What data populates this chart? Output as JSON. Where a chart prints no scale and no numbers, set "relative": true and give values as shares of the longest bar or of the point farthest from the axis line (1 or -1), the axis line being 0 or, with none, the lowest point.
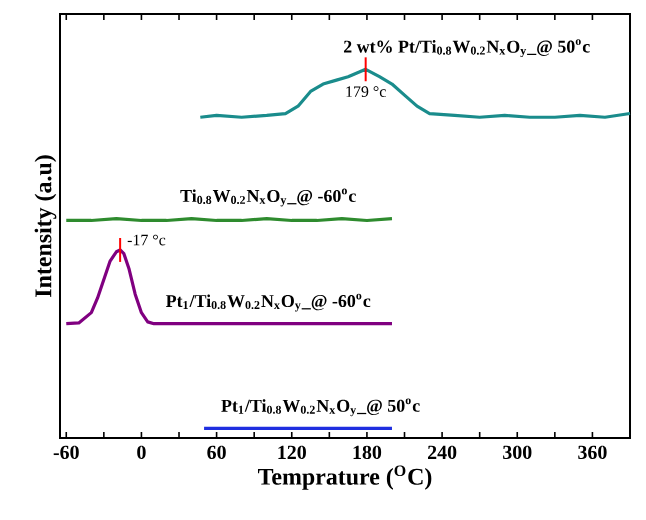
{
  "chart_data": {
    "type": "line",
    "relative": true,
    "xlabel": "Temprature ($^{O}$C)",
    "ylabel": "Intensity (a.u)",
    "xlim": [
      -65,
      390
    ],
    "xticks": [
      -60,
      {
        "value": -30,
        "label": null
      },
      0,
      {
        "value": 30,
        "label": null
      },
      60,
      {
        "value": 90,
        "label": null
      },
      120,
      {
        "value": 150,
        "label": null
      },
      180,
      {
        "value": 210,
        "label": null
      },
      240,
      {
        "value": 270,
        "label": null
      },
      300,
      {
        "value": 330,
        "label": null
      },
      360
    ],
    "legend": false,
    "marker": "none",
    "line_style": "solid",
    "series": [
      {
        "name": "2 wt% Pt/Ti$_{0.8}$W$_{0.2}$N$_{x}$O$_{y}$_@ 50$^{o}$c",
        "color": "#1a8c8c",
        "x": [
          47,
          60,
          80,
          100,
          115,
          125,
          135,
          145,
          155,
          165,
          179,
          190,
          200,
          210,
          220,
          230,
          250,
          270,
          290,
          310,
          330,
          350,
          370,
          390
        ],
        "values": [
          0.87,
          0.875,
          0.87,
          0.875,
          0.88,
          0.9,
          0.94,
          0.96,
          0.97,
          0.98,
          1.0,
          0.98,
          0.96,
          0.93,
          0.9,
          0.88,
          0.875,
          0.87,
          0.875,
          0.87,
          0.87,
          0.875,
          0.87,
          0.88
        ]
      },
      {
        "name": "Ti$_{0.8}$W$_{0.2}$N$_{x}$O$_{y}$_@ -60$^{o}$c",
        "color": "#2e8b2e",
        "x": [
          -60,
          -40,
          -20,
          0,
          20,
          40,
          60,
          80,
          100,
          120,
          140,
          160,
          180,
          200
        ],
        "values": [
          0.59,
          0.59,
          0.595,
          0.59,
          0.59,
          0.595,
          0.59,
          0.59,
          0.595,
          0.59,
          0.59,
          0.595,
          0.59,
          0.595
        ]
      },
      {
        "name": "Pt$_{1}$/Ti$_{0.8}$W$_{0.2}$N$_{x}$O$_{y}$_@ -60$^{o}$c",
        "color": "#800080",
        "x": [
          -60,
          -50,
          -40,
          -35,
          -30,
          -25,
          -20,
          -17,
          -14,
          -10,
          -5,
          0,
          5,
          10,
          40,
          80,
          120,
          160,
          200
        ],
        "values": [
          0.31,
          0.312,
          0.34,
          0.38,
          0.43,
          0.48,
          0.505,
          0.51,
          0.5,
          0.46,
          0.39,
          0.34,
          0.315,
          0.31,
          0.31,
          0.31,
          0.31,
          0.31,
          0.31
        ]
      },
      {
        "name": "Pt$_{1}$/Ti$_{0.8}$W$_{0.2}$N$_{x}$O$_{y}$_@ 50$^{o}$c",
        "color": "#1f2fe0",
        "x": [
          50,
          75,
          100,
          125,
          150,
          175,
          200
        ],
        "values": [
          0.026,
          0.026,
          0.026,
          0.026,
          0.026,
          0.026,
          0.026
        ]
      }
    ],
    "annotations": [
      {
        "text": "179 °c",
        "x": 179,
        "y": 1.0
      },
      {
        "text": "-17 °c",
        "x": -17,
        "y": 0.51
      }
    ]
  }
}
